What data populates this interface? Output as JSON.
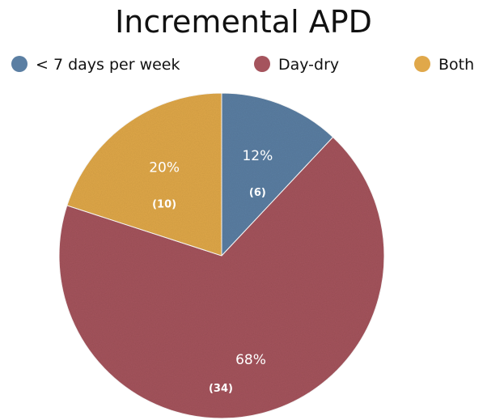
{
  "chart_data": {
    "type": "pie",
    "title": "Incremental APD",
    "legend_position": "top",
    "slices": [
      {
        "label": "< 7 days per week",
        "value": 12,
        "percent_label": "12%",
        "count_label": "(6)",
        "color": "#5b7fa3"
      },
      {
        "label": "Day-dry",
        "value": 68,
        "percent_label": "68%",
        "count_label": "(34)",
        "color": "#a5545d"
      },
      {
        "label": "Both",
        "value": 20,
        "percent_label": "20%",
        "count_label": "(10)",
        "color": "#e0a84a"
      }
    ]
  }
}
